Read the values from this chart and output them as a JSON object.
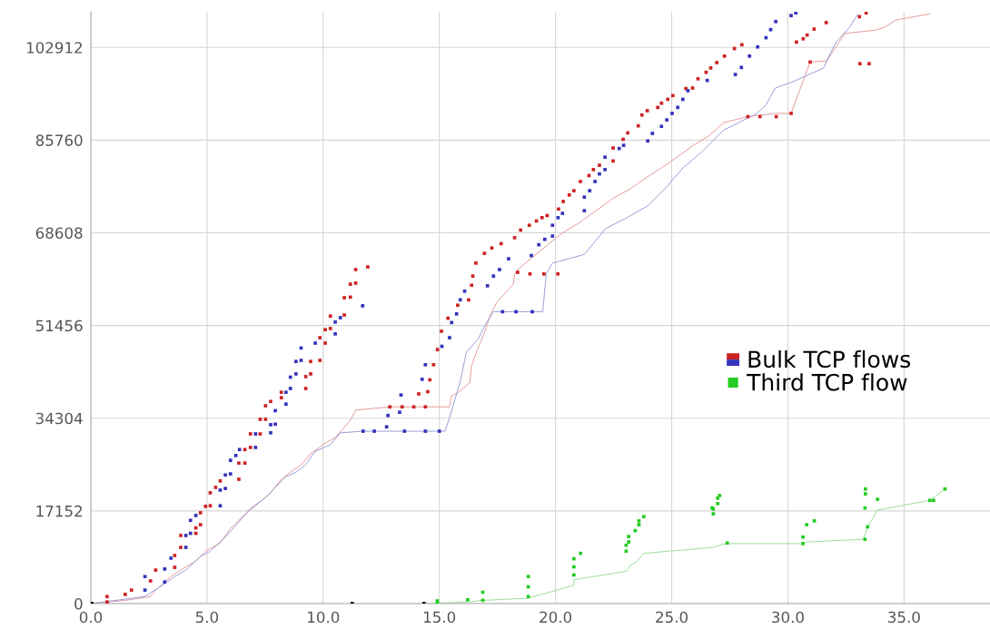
{
  "chart_data": {
    "type": "scatter",
    "grid": true,
    "legend": "right",
    "xlim": [
      0,
      38.7
    ],
    "ylim": [
      0,
      109500
    ],
    "xticks": [
      {
        "value": 0,
        "label": "0.0"
      },
      {
        "value": 5,
        "label": "5.0"
      },
      {
        "value": 10,
        "label": "10.0"
      },
      {
        "value": 15,
        "label": "15.0"
      },
      {
        "value": 20,
        "label": "20.0"
      },
      {
        "value": 25,
        "label": "25.0"
      },
      {
        "value": 30,
        "label": "30.0"
      },
      {
        "value": 35,
        "label": "35.0"
      }
    ],
    "yticks": [
      0,
      17152,
      34304,
      51456,
      68608,
      85760,
      102912
    ],
    "series": [
      {
        "name": "Bulk TCP flows",
        "marker": "square",
        "x": [
          0.7,
          0.7,
          1.48,
          1.75,
          2.57,
          2.79,
          3.61,
          3.61,
          3.87,
          3.87,
          4.52,
          4.52,
          4.72,
          4.72,
          4.94,
          5.14,
          5.14,
          5.37,
          5.57,
          6.37,
          6.37,
          6.63,
          6.63,
          6.87,
          6.87,
          7.29,
          7.29,
          7.52,
          7.52,
          7.74,
          8.2,
          8.2,
          9.25,
          9.25,
          9.46,
          9.46,
          9.86,
          9.86,
          10.09,
          10.09,
          10.31,
          10.31,
          10.91,
          10.91,
          11.17,
          11.17,
          11.4,
          11.4,
          11.92,
          12.87,
          13.4,
          13.9,
          14.4,
          14.11,
          14.5,
          14.59,
          14.75,
          14.92,
          15.09,
          15.37,
          15.79,
          16.26,
          16.39,
          16.44,
          16.57,
          16.94,
          17.26,
          17.66,
          18.24,
          18.37,
          18.9,
          19.5,
          20.1,
          18.5,
          18.87,
          19.18,
          19.42,
          19.64,
          20.13,
          20.33,
          20.59,
          20.79,
          21.07,
          21.44,
          21.63,
          21.89,
          22.48,
          22.48,
          22.91,
          23.11,
          23.56,
          23.72,
          23.95,
          24.4,
          24.56,
          24.83,
          25.05,
          25.61,
          25.9,
          26.13,
          26.48,
          26.68,
          26.94,
          27.27,
          27.7,
          28.02,
          28.28,
          28.8,
          29.5,
          30.14,
          30.37,
          30.66,
          30.83,
          30.96,
          31.13,
          31.65,
          33.08,
          33.1,
          33.37,
          33.5,
          2.33,
          2.33,
          3.18,
          3.18,
          3.45,
          4.09,
          4.09,
          4.29,
          4.29,
          4.52,
          5.57,
          5.57,
          5.79,
          5.79,
          6.01,
          6.01,
          6.24,
          6.4,
          7.09,
          7.09,
          7.74,
          7.74,
          7.94,
          7.94,
          8.4,
          8.4,
          8.59,
          8.59,
          8.83,
          8.83,
          9.05,
          9.05,
          9.66,
          10.52,
          10.52,
          10.74,
          11.7,
          11.72,
          12.2,
          12.73,
          12.79,
          13.29,
          13.35,
          13.5,
          14.4,
          15.0,
          14.26,
          14.4,
          15.11,
          15.44,
          15.53,
          15.74,
          15.9,
          16.09,
          17.07,
          17.33,
          17.59,
          17.72,
          18.3,
          19.0,
          17.98,
          18.96,
          19.28,
          19.54,
          19.87,
          19.87,
          20.11,
          20.3,
          21.24,
          21.24,
          21.47,
          21.7,
          21.89,
          22.13,
          22.13,
          22.74,
          22.93,
          23.97,
          24.17,
          24.56,
          24.79,
          25.02,
          25.26,
          25.48,
          25.7,
          26.53,
          27.74,
          28.0,
          28.35,
          28.7,
          29.06,
          29.26,
          29.48,
          30.14,
          30.34
        ],
        "values": [
          300,
          1300,
          1700,
          2500,
          4200,
          6200,
          6700,
          8900,
          10400,
          12600,
          13000,
          14000,
          14600,
          16800,
          18000,
          18100,
          20500,
          21500,
          22700,
          23000,
          26000,
          26000,
          28500,
          28900,
          31400,
          31400,
          34100,
          34100,
          36600,
          37400,
          38100,
          39100,
          39800,
          42000,
          42500,
          44800,
          45000,
          49200,
          48200,
          50700,
          50900,
          53200,
          53400,
          56600,
          56700,
          59100,
          59300,
          61800,
          62300,
          36400,
          36400,
          36400,
          36400,
          38800,
          39200,
          41400,
          44200,
          47000,
          50400,
          52800,
          55200,
          56200,
          58900,
          60600,
          63000,
          64800,
          65800,
          66600,
          67700,
          61300,
          61000,
          61000,
          61000,
          69100,
          70000,
          70800,
          71400,
          71800,
          73000,
          74400,
          75600,
          76400,
          78100,
          79200,
          80300,
          81100,
          81900,
          84300,
          85900,
          87100,
          88400,
          90400,
          91200,
          91800,
          92600,
          93300,
          94000,
          95300,
          95400,
          97100,
          98300,
          99100,
          100100,
          101300,
          102700,
          103400,
          90100,
          90100,
          90100,
          90700,
          103900,
          104500,
          105200,
          100200,
          106300,
          107500,
          108600,
          99900,
          109300,
          99900,
          2500,
          5000,
          4000,
          6400,
          8400,
          10400,
          12600,
          13000,
          15400,
          16300,
          18100,
          21000,
          21300,
          23800,
          24000,
          26500,
          27400,
          28500,
          28900,
          31400,
          31600,
          33100,
          33200,
          35700,
          36900,
          39100,
          39800,
          41900,
          42500,
          44800,
          45000,
          47300,
          48200,
          49900,
          52100,
          52900,
          55100,
          31900,
          31900,
          32700,
          34800,
          35400,
          38600,
          31900,
          31900,
          31900,
          41500,
          44200,
          47600,
          49200,
          52000,
          53600,
          56200,
          57800,
          58800,
          60600,
          61800,
          54000,
          54000,
          54000,
          63800,
          64400,
          66400,
          67400,
          68000,
          70000,
          71400,
          72200,
          72700,
          75200,
          76400,
          78100,
          79500,
          80300,
          82600,
          84200,
          84800,
          85600,
          87000,
          88300,
          89500,
          90700,
          91800,
          93300,
          94900,
          96800,
          97900,
          99200,
          101300,
          103000,
          104700,
          106200,
          107700,
          108800,
          109300
        ],
        "colors": [
          "#cc2222",
          "#cc2222",
          "#cc2222",
          "#cc2222",
          "#cc2222",
          "#cc2222",
          "#cc2222",
          "#cc2222",
          "#cc2222",
          "#cc2222",
          "#cc2222",
          "#cc2222",
          "#cc2222",
          "#cc2222",
          "#cc2222",
          "#cc2222",
          "#cc2222",
          "#cc2222",
          "#cc2222",
          "#cc2222",
          "#cc2222",
          "#cc2222",
          "#cc2222",
          "#cc2222",
          "#cc2222",
          "#cc2222",
          "#cc2222",
          "#cc2222",
          "#cc2222",
          "#cc2222",
          "#cc2222",
          "#cc2222",
          "#cc2222",
          "#cc2222",
          "#cc2222",
          "#cc2222",
          "#cc2222",
          "#cc2222",
          "#cc2222",
          "#cc2222",
          "#cc2222",
          "#cc2222",
          "#cc2222",
          "#cc2222",
          "#cc2222",
          "#cc2222",
          "#cc2222",
          "#cc2222",
          "#cc2222",
          "#cc2222",
          "#cc2222",
          "#cc2222",
          "#cc2222",
          "#cc2222",
          "#cc2222",
          "#cc2222",
          "#cc2222",
          "#cc2222",
          "#cc2222",
          "#cc2222",
          "#cc2222",
          "#cc2222",
          "#cc2222",
          "#cc2222",
          "#cc2222",
          "#cc2222",
          "#cc2222",
          "#cc2222",
          "#cc2222",
          "#cc2222",
          "#cc2222",
          "#cc2222",
          "#cc2222",
          "#cc2222",
          "#cc2222",
          "#cc2222",
          "#cc2222",
          "#cc2222",
          "#cc2222",
          "#cc2222",
          "#cc2222",
          "#cc2222",
          "#cc2222",
          "#cc2222",
          "#cc2222",
          "#cc2222",
          "#cc2222",
          "#cc2222",
          "#cc2222",
          "#cc2222",
          "#cc2222",
          "#cc2222",
          "#cc2222",
          "#cc2222",
          "#cc2222",
          "#cc2222",
          "#cc2222",
          "#cc2222",
          "#cc2222",
          "#cc2222",
          "#cc2222",
          "#cc2222",
          "#cc2222",
          "#cc2222",
          "#cc2222",
          "#cc2222",
          "#cc2222",
          "#cc2222",
          "#cc2222",
          "#cc2222",
          "#cc2222",
          "#cc2222",
          "#cc2222",
          "#cc2222",
          "#cc2222",
          "#cc2222",
          "#cc2222",
          "#cc2222",
          "#cc2222",
          "#cc2222",
          "#3333bb",
          "#3333bb",
          "#3333bb",
          "#3333bb",
          "#3333bb",
          "#3333bb",
          "#3333bb",
          "#3333bb",
          "#3333bb",
          "#3333bb",
          "#3333bb",
          "#3333bb",
          "#3333bb",
          "#3333bb",
          "#3333bb",
          "#3333bb",
          "#3333bb",
          "#3333bb",
          "#3333bb",
          "#3333bb",
          "#3333bb",
          "#3333bb",
          "#3333bb",
          "#3333bb",
          "#3333bb",
          "#3333bb",
          "#3333bb",
          "#3333bb",
          "#3333bb",
          "#3333bb",
          "#3333bb",
          "#3333bb",
          "#3333bb",
          "#3333bb",
          "#3333bb",
          "#3333bb",
          "#3333bb",
          "#3333bb",
          "#3333bb",
          "#3333bb",
          "#3333bb",
          "#3333bb",
          "#3333bb",
          "#3333bb",
          "#3333bb",
          "#3333bb",
          "#3333bb",
          "#3333bb",
          "#3333bb",
          "#3333bb",
          "#3333bb",
          "#3333bb",
          "#3333bb",
          "#3333bb",
          "#3333bb",
          "#3333bb",
          "#3333bb",
          "#3333bb",
          "#3333bb",
          "#3333bb",
          "#3333bb",
          "#3333bb",
          "#3333bb",
          "#3333bb",
          "#3333bb",
          "#3333bb",
          "#3333bb",
          "#3333bb",
          "#3333bb",
          "#3333bb",
          "#3333bb",
          "#3333bb",
          "#3333bb",
          "#3333bb",
          "#3333bb",
          "#3333bb",
          "#3333bb",
          "#3333bb",
          "#3333bb",
          "#3333bb",
          "#3333bb",
          "#3333bb",
          "#3333bb",
          "#3333bb",
          "#3333bb",
          "#3333bb",
          "#3333bb",
          "#3333bb",
          "#3333bb",
          "#3333bb",
          "#3333bb",
          "#3333bb",
          "#3333bb",
          "#3333bb",
          "#3333bb"
        ]
      },
      {
        "name": "Third TCP flow",
        "marker": "square",
        "color": "#22cc22",
        "x": [
          14.91,
          14.91,
          16.22,
          16.87,
          16.87,
          18.83,
          18.83,
          18.83,
          20.79,
          20.79,
          20.79,
          21.08,
          23.04,
          23.04,
          23.15,
          23.15,
          23.43,
          23.59,
          23.59,
          23.8,
          26.74,
          26.79,
          26.79,
          26.98,
          26.98,
          27.06,
          27.39,
          30.65,
          30.65,
          30.81,
          31.14,
          33.32,
          33.32,
          33.34,
          33.34,
          33.43,
          33.86,
          36.11,
          36.27,
          36.76
        ],
        "values": [
          0,
          500,
          700,
          600,
          2100,
          1300,
          3100,
          5000,
          5300,
          6800,
          8300,
          9300,
          9700,
          10800,
          11400,
          12400,
          13500,
          14600,
          15300,
          16100,
          17700,
          16600,
          17500,
          18500,
          19500,
          20000,
          11200,
          11100,
          12300,
          14600,
          15300,
          11900,
          17700,
          20300,
          21200,
          14200,
          19300,
          19100,
          19100,
          21200
        ]
      },
      {
        "type": "line",
        "color": "#e39a9a",
        "x": [
          0.0,
          1.48,
          2.57,
          2.79,
          3.45,
          3.87,
          4.52,
          4.94,
          5.57,
          6.01,
          6.63,
          7.09,
          7.74,
          8.2,
          8.59,
          9.05,
          9.46,
          10.09,
          10.52,
          11.17,
          11.4,
          12.87,
          15.44,
          15.5,
          15.79,
          16.31,
          16.39,
          16.61,
          16.94,
          17.2,
          17.46,
          18.18,
          18.24,
          18.37,
          20.26,
          21.04,
          22.48,
          23.2,
          24.04,
          24.83,
          25.94,
          26.59,
          27.24,
          28.28,
          29.46,
          30.14,
          30.96,
          31.67,
          32.45,
          33.74,
          34.15,
          34.67,
          36.1
        ],
        "values": [
          0,
          600,
          1300,
          2500,
          5000,
          6200,
          7900,
          9700,
          11200,
          13900,
          16500,
          18100,
          20500,
          23000,
          24300,
          25700,
          27700,
          29700,
          30700,
          33900,
          35800,
          36400,
          36400,
          38300,
          39000,
          40900,
          44000,
          46700,
          50100,
          53400,
          55700,
          59100,
          61000,
          61800,
          68500,
          70500,
          75000,
          76700,
          79200,
          81400,
          84800,
          86500,
          89000,
          90100,
          90700,
          90700,
          100200,
          100400,
          105500,
          106100,
          106600,
          108000,
          109100
        ]
      },
      {
        "type": "line",
        "color": "#9a9ad8",
        "x": [
          0.0,
          2.33,
          3.18,
          3.61,
          4.09,
          4.72,
          5.14,
          5.79,
          6.37,
          6.87,
          7.52,
          7.94,
          8.4,
          8.83,
          9.25,
          9.66,
          10.31,
          10.74,
          11.72,
          15.24,
          15.44,
          15.9,
          16.16,
          16.68,
          17.0,
          17.33,
          19.45,
          19.6,
          19.87,
          21.24,
          22.16,
          23.07,
          23.97,
          24.76,
          25.48,
          26.33,
          27.24,
          28.67,
          29.06,
          29.46,
          30.18,
          31.54,
          31.67,
          32.06,
          32.65,
          33.0
        ],
        "values": [
          0,
          1300,
          3700,
          5000,
          6200,
          8700,
          9700,
          12300,
          15100,
          17600,
          19600,
          21500,
          23500,
          24300,
          25700,
          28200,
          29400,
          31600,
          31900,
          31900,
          34400,
          41100,
          46500,
          49000,
          51800,
          54000,
          54000,
          61000,
          63000,
          64600,
          69400,
          71400,
          73600,
          77000,
          80600,
          83700,
          87600,
          90700,
          92300,
          95400,
          96500,
          99100,
          100400,
          103800,
          106600,
          109000
        ]
      },
      {
        "type": "line",
        "color": "#99dd99",
        "x": [
          14.34,
          16.22,
          16.87,
          18.83,
          20.79,
          20.79,
          23.07,
          23.2,
          23.48,
          23.8,
          26.79,
          27.31,
          30.57,
          30.85,
          33.26,
          33.43,
          33.86,
          36.11,
          36.76
        ],
        "values": [
          0,
          300,
          600,
          1000,
          3400,
          4400,
          6000,
          7000,
          7700,
          9300,
          10400,
          11100,
          11100,
          11400,
          11900,
          14200,
          17300,
          19100,
          21200
        ]
      },
      {
        "marker": "square",
        "color": "#000000",
        "x": [
          0.05,
          11.25,
          14.34
        ],
        "values": [
          0,
          0,
          0
        ]
      }
    ]
  }
}
